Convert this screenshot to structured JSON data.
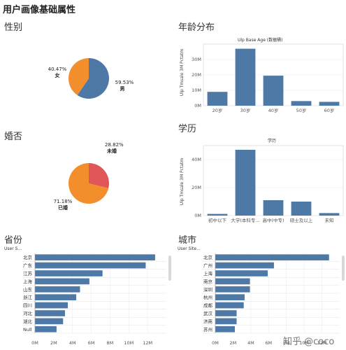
{
  "page_title": "用户画像基础属性",
  "sections": {
    "gender": "性别",
    "age": "年龄分布",
    "marital": "婚否",
    "education": "学历",
    "province": "省份",
    "city": "城市"
  },
  "watermark": "知乎 @coco",
  "colors": {
    "bar": "#4e79a7",
    "pie_blue": "#4e79a7",
    "pie_orange": "#f28e2b",
    "pie_red": "#e15759"
  },
  "chart_data": [
    {
      "id": "gender",
      "type": "pie",
      "slices": [
        {
          "label": "男",
          "pct_label": "59.53%",
          "value": 59.53,
          "color": "#4e79a7"
        },
        {
          "label": "女",
          "pct_label": "40.47%",
          "value": 40.47,
          "color": "#f28e2b"
        }
      ]
    },
    {
      "id": "age",
      "type": "bar",
      "title": "Ulp Base Age (数据桶)",
      "ylabel": "Ulp Tmsale 3M Pctatm",
      "categories": [
        "20岁",
        "30岁",
        "40岁",
        "50岁",
        "60岁"
      ],
      "values": [
        9,
        37,
        19.5,
        3,
        2.5
      ],
      "yticks": [
        "0M",
        "10M",
        "20M",
        "30M"
      ],
      "ylim": [
        0,
        40
      ]
    },
    {
      "id": "marital",
      "type": "pie",
      "slices": [
        {
          "label": "未婚",
          "pct_label": "28.82%",
          "value": 28.82,
          "color": "#e15759"
        },
        {
          "label": "已婚",
          "pct_label": "71.18%",
          "value": 71.18,
          "color": "#f28e2b"
        }
      ]
    },
    {
      "id": "education",
      "type": "bar",
      "title": "学历",
      "ylabel": "Ulp Tmsale 3M Pctatm",
      "categories": [
        "初中以下",
        "大学(本科专...",
        "高中(中专)",
        "硕士及以上",
        "未知"
      ],
      "values": [
        1.2,
        47,
        11,
        10,
        1.8
      ],
      "yticks": [
        "0M",
        "20M",
        "40M"
      ],
      "ylim": [
        0,
        50
      ]
    },
    {
      "id": "province",
      "type": "bar",
      "orientation": "horizontal",
      "header": "User S...",
      "categories": [
        "北京",
        "广东",
        "江苏",
        "上海",
        "山东",
        "浙江",
        "四川",
        "河北",
        "湖北",
        "Null"
      ],
      "values": [
        12.8,
        11.8,
        7.2,
        5.8,
        4.8,
        4.4,
        3.5,
        3.2,
        3.0,
        2.3
      ],
      "xticks": [
        "0M",
        "2M",
        "4M",
        "6M",
        "8M",
        "10M",
        "12M"
      ],
      "xlim": [
        0,
        14
      ]
    },
    {
      "id": "city",
      "type": "bar",
      "orientation": "horizontal",
      "header": "User Site...",
      "categories": [
        "北京",
        "广州",
        "上海",
        "南京",
        "深圳",
        "杭州",
        "成都",
        "武汉",
        "济南",
        "苏州"
      ],
      "values": [
        12.8,
        6.6,
        5.9,
        3.9,
        3.9,
        3.3,
        3.2,
        2.4,
        2.4,
        2.2
      ],
      "xticks": [
        "0M",
        "2M",
        "4M",
        "6M",
        "8M",
        "10M",
        "12M"
      ],
      "xlim": [
        0,
        14
      ]
    }
  ]
}
